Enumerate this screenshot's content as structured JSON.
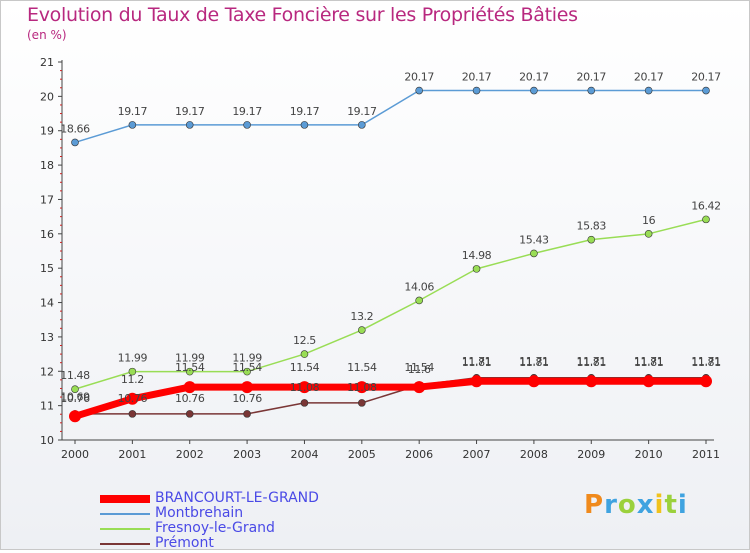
{
  "chart_data": {
    "type": "line",
    "title": "Evolution du Taux de Taxe Foncière sur les Propriétés Bâties",
    "ylabel": "(en %)",
    "xlabel": "",
    "ylim": [
      10,
      21
    ],
    "y_ticks": [
      "10",
      "11",
      "12",
      "13",
      "14",
      "15",
      "16",
      "17",
      "18",
      "19",
      "20",
      "21"
    ],
    "categories": [
      "2000",
      "2001",
      "2002",
      "2003",
      "2004",
      "2005",
      "2006",
      "2007",
      "2008",
      "2009",
      "2010",
      "2011"
    ],
    "grid": false,
    "legend_position": "bottom-left",
    "series": [
      {
        "name": "BRANCOURT-LE-GRAND",
        "color": "#ff0000",
        "values": [
          10.69,
          11.2,
          11.54,
          11.54,
          11.54,
          11.54,
          11.54,
          11.71,
          11.71,
          11.71,
          11.71,
          11.71
        ],
        "labels": [
          "10.69",
          "11.2",
          "11.54",
          "11.54",
          "11.54",
          "11.54",
          "11.54",
          "11.71",
          "11.71",
          "11.71",
          "11.71",
          "11.71"
        ]
      },
      {
        "name": "Montbrehain",
        "color": "#5b9bd5",
        "values": [
          18.66,
          19.17,
          19.17,
          19.17,
          19.17,
          19.17,
          20.17,
          20.17,
          20.17,
          20.17,
          20.17,
          20.17
        ],
        "labels": [
          "18.66",
          "19.17",
          "19.17",
          "19.17",
          "19.17",
          "19.17",
          "20.17",
          "20.17",
          "20.17",
          "20.17",
          "20.17",
          "20.17"
        ]
      },
      {
        "name": "Fresnoy-le-Grand",
        "color": "#99dd55",
        "values": [
          11.48,
          11.99,
          11.99,
          11.99,
          12.5,
          13.2,
          14.06,
          14.98,
          15.43,
          15.83,
          16,
          16.42
        ],
        "labels": [
          "11.48",
          "11.99",
          "11.99",
          "11.99",
          "12.5",
          "13.2",
          "14.06",
          "14.98",
          "15.43",
          "15.83",
          "16",
          "16.42"
        ]
      },
      {
        "name": "Prémont",
        "color": "#7a3636",
        "values": [
          10.76,
          10.76,
          10.76,
          10.76,
          11.08,
          11.08,
          11.6,
          11.81,
          11.81,
          11.81,
          11.81,
          11.81
        ],
        "labels": [
          "10.76",
          "10.76",
          "10.76",
          "10.76",
          "11.08",
          "11.08",
          "11.6",
          "11.81",
          "11.81",
          "11.81",
          "11.81",
          "11.81"
        ]
      }
    ]
  },
  "logo": {
    "letters": [
      "P",
      "r",
      "o",
      "x",
      "i",
      "t",
      "i"
    ],
    "colors": [
      "#f08a1c",
      "#3fa3e0",
      "#9bd13c",
      "#3fa3e0",
      "#f0c21c",
      "#9bd13c",
      "#3fa3e0"
    ]
  }
}
